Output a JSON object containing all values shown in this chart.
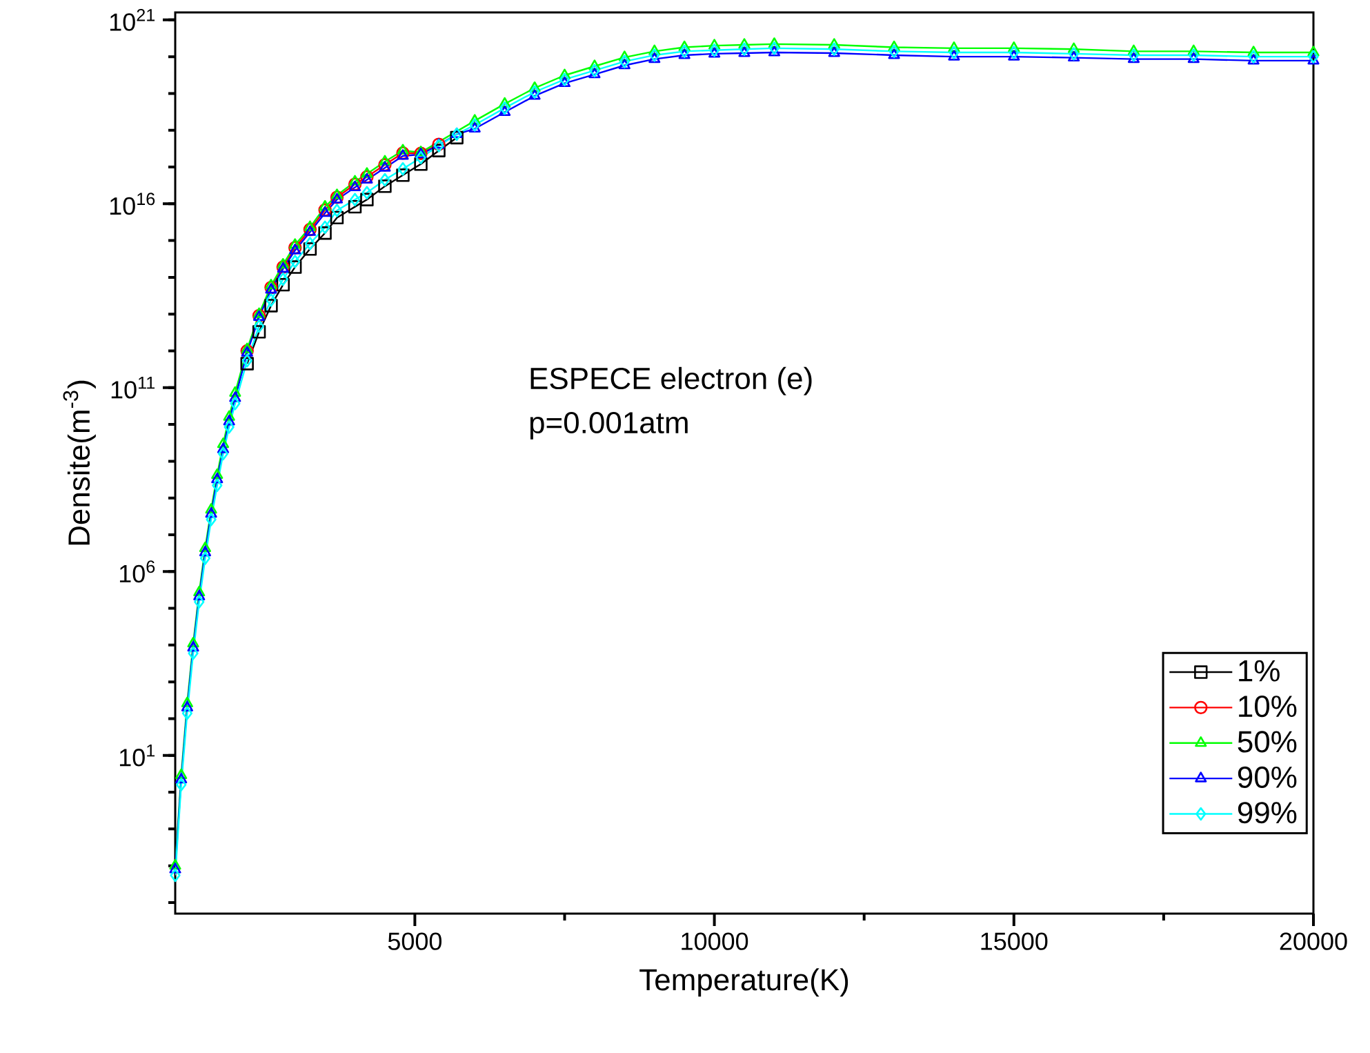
{
  "chart_data": {
    "type": "line",
    "xlabel": "Temperature(K)",
    "ylabel": "Densite(m$^{-3}$)",
    "annotations": [
      "ESPECE electron (e)",
      "p=0.001atm"
    ],
    "log": "y",
    "legend": "bottom right",
    "xlim": [
      1000,
      20000
    ],
    "xticks": [
      5000,
      10000,
      15000,
      20000
    ],
    "ylim": [
      0.0005,
      1.6e+21
    ],
    "yticks": [
      {
        "value": 10,
        "label": "10$^{1}$"
      },
      {
        "value": 1000000.0,
        "label": "10$^{6}$"
      },
      {
        "value": 100000000000.0,
        "label": "10$^{11}$"
      },
      {
        "value": 1e+16,
        "label": "10$^{16}$"
      },
      {
        "value": 1e+21,
        "label": "10$^{21}$"
      }
    ],
    "x": [
      1000,
      1100,
      1200,
      1300,
      1400,
      1500,
      1600,
      1700,
      1800,
      1900,
      2000,
      2200,
      2400,
      2600,
      2800,
      3000,
      3250,
      3500,
      3700,
      4000,
      4200,
      4500,
      4800,
      5100,
      5400,
      5700,
      6000,
      6500,
      7000,
      7500,
      8000,
      8500,
      9000,
      9500,
      10000,
      10500,
      11000,
      12000,
      13000,
      14000,
      15000,
      16000,
      17000,
      18000,
      19000,
      20000
    ],
    "series": [
      {
        "name": "1%",
        "color": "#000000",
        "marker": "square",
        "values": [
          null,
          null,
          null,
          null,
          null,
          null,
          null,
          null,
          null,
          null,
          null,
          450000000000.0,
          3300000000000.0,
          17000000000000.0,
          63000000000000.0,
          190000000000000.0,
          590000000000000.0,
          1600000000000000.0,
          4200000000000000.0,
          8300000000000000.0,
          1.3e+16,
          3e+16,
          6e+16,
          1.2e+17,
          2.8e+17,
          6.3e+17,
          null,
          null,
          null,
          null,
          null,
          null,
          null,
          null,
          null,
          null,
          null,
          null,
          null,
          null,
          null,
          null,
          null,
          null,
          null,
          null
        ]
      },
      {
        "name": "10%",
        "color": "#ff0000",
        "marker": "circle",
        "values": [
          null,
          null,
          null,
          null,
          null,
          null,
          null,
          null,
          null,
          null,
          null,
          1000000000000.0,
          9100000000000.0,
          53000000000000.0,
          190000000000000.0,
          640000000000000.0,
          2000000000000000.0,
          6800000000000000.0,
          1.5e+16,
          3.4e+16,
          5.4e+16,
          1.15e+17,
          2.4e+17,
          2.35e+17,
          4.15e+17,
          null,
          null,
          null,
          null,
          null,
          null,
          null,
          null,
          null,
          null,
          null,
          null,
          null,
          null,
          null,
          null,
          null,
          null,
          null,
          null,
          null
        ]
      },
      {
        "name": "50%",
        "color": "#00ff00",
        "marker": "triangle",
        "values": [
          0.01,
          2.9,
          260.0,
          11000.0,
          270000.0,
          4300000.0,
          48000000.0,
          420000000.0,
          2900000000.0,
          16000000000.0,
          72000000000.0,
          1100000000000.0,
          10000000000000.0,
          60000000000000.0,
          220000000000000.0,
          760000000000000.0,
          2300000000000000.0,
          8300000000000000.0,
          1.7e+16,
          4e+16,
          6.5e+16,
          1.4e+17,
          2.8e+17,
          2.5e+17,
          null,
          null,
          1.8e+18,
          5.2e+18,
          1.4e+19,
          3.1e+19,
          5.5e+19,
          9.6e+19,
          1.4e+20,
          1.8e+20,
          2e+20,
          2.1e+20,
          2.2e+20,
          2.1e+20,
          1.8e+20,
          1.7e+20,
          1.7e+20,
          1.6e+20,
          1.4e+20,
          1.4e+20,
          1.3e+20,
          1.3e+20
        ]
      },
      {
        "name": "90%",
        "color": "#0000ff",
        "marker": "triangle",
        "values": [
          0.0079,
          2.2,
          200.0,
          8500.0,
          210000.0,
          3300000.0,
          37000000.0,
          320000000.0,
          2100000000.0,
          12000000000.0,
          52000000000.0,
          890000000000.0,
          8300000000000.0,
          46000000000000.0,
          170000000000000.0,
          540000000000000.0,
          1700000000000000.0,
          5600000000000000.0,
          1.3e+16,
          2.8e+16,
          4.5e+16,
          9.5e+16,
          2e+17,
          2.2e+17,
          4e+17,
          7.8e+17,
          1.1e+18,
          3.1e+18,
          8.6e+18,
          1.9e+19,
          3.3e+19,
          5.8e+19,
          8.6e+19,
          1.1e+20,
          1.2e+20,
          1.25e+20,
          1.3e+20,
          1.25e+20,
          1.1e+20,
          1e+20,
          1e+20,
          9.4e+19,
          8.6e+19,
          8.6e+19,
          7.8e+19,
          7.8e+19
        ]
      },
      {
        "name": "99%",
        "color": "#00ffff",
        "marker": "diamond",
        "values": [
          0.0055,
          1.6,
          140.0,
          6000.0,
          150000.0,
          2300000.0,
          26000000.0,
          220000000.0,
          1600000000.0,
          8500000000.0,
          37000000000.0,
          540000000000.0,
          4700000000000.0,
          24000000000000.0,
          89000000000000.0,
          270000000000000.0,
          830000000000000.0,
          2300000000000000.0,
          6600000000000000.0,
          1.3e+16,
          2e+16,
          4.5e+16,
          8.9e+16,
          1.8e+17,
          3.8e+17,
          7.8e+17,
          1.4e+18,
          4e+18,
          1.1e+19,
          2.4e+19,
          4.2e+19,
          7.4e+19,
          1.1e+20,
          1.4e+20,
          1.5e+20,
          1.6e+20,
          1.7e+20,
          1.6e+20,
          1.4e+20,
          1.3e+20,
          1.3e+20,
          1.2e+20,
          1.1e+20,
          1.1e+20,
          1e+20,
          1e+20
        ]
      }
    ]
  }
}
